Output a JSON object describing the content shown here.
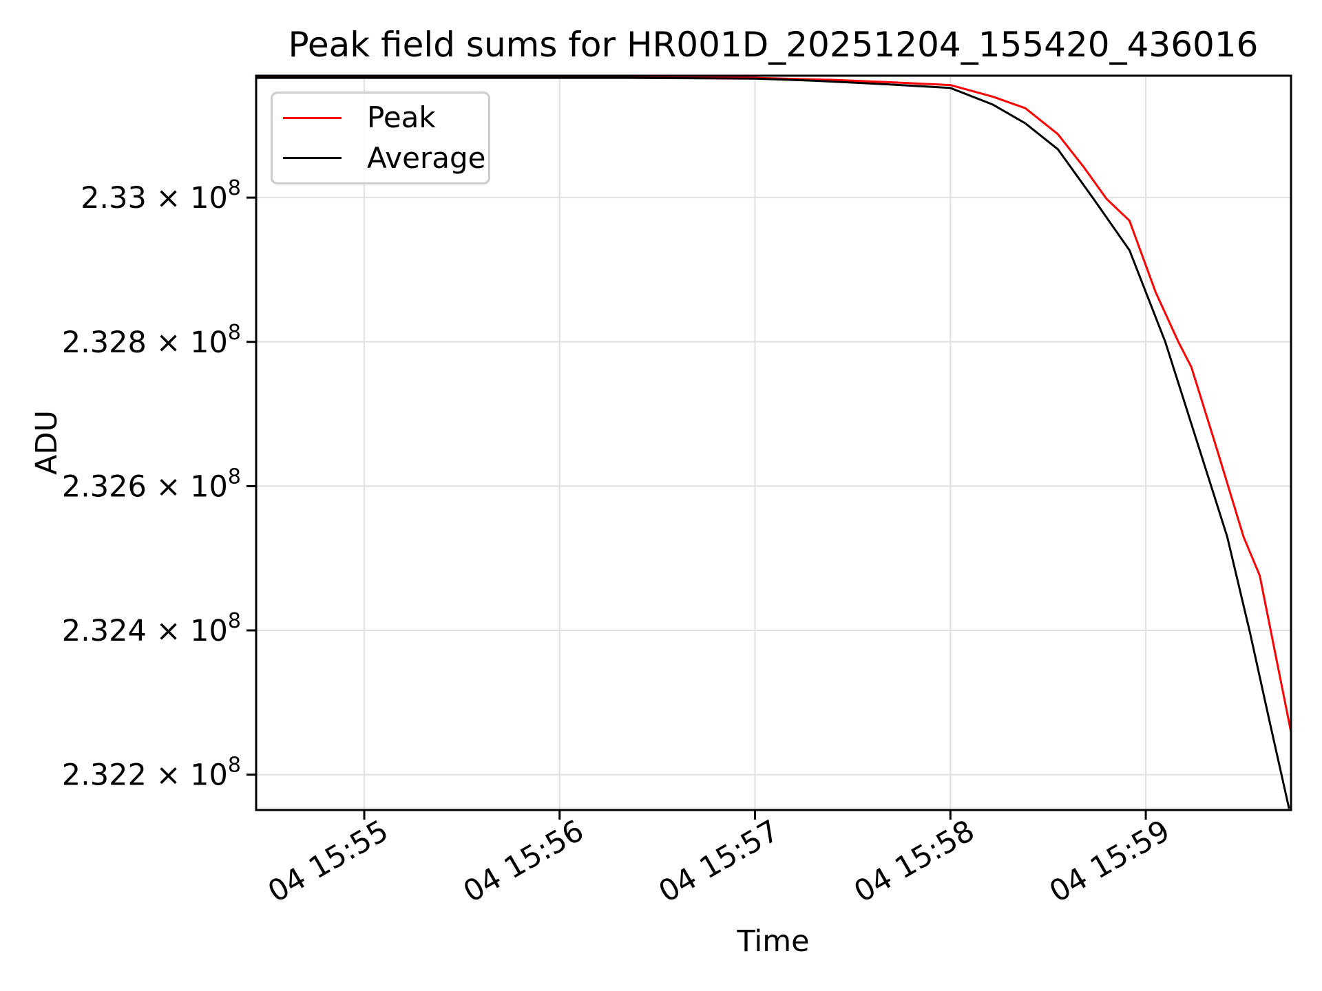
{
  "chart_data": {
    "type": "line",
    "title": "Peak field sums for HR001D_20251204_155420_436016",
    "xlabel": "Time",
    "ylabel": "ADU",
    "y_scale": "log",
    "grid": true,
    "x_axis": {
      "tick_labels": [
        "04 15:55",
        "04 15:56",
        "04 15:57",
        "04 15:58",
        "04 15:59"
      ],
      "tick_seconds_after_04_1554": [
        60,
        120,
        180,
        240,
        300
      ],
      "range_seconds_after_04_1554": [
        26.8,
        344.6
      ],
      "tick_label_rotation_deg": 30
    },
    "y_axis": {
      "ticks": [
        {
          "value": 233000000,
          "text": "2.33 × 10",
          "sup": "8"
        },
        {
          "value": 232800000,
          "text": "2.328 × 10",
          "sup": "8"
        },
        {
          "value": 232600000,
          "text": "2.326 × 10",
          "sup": "8"
        },
        {
          "value": 232400000,
          "text": "2.324 × 10",
          "sup": "8"
        },
        {
          "value": 232200000,
          "text": "2.322 × 10",
          "sup": "8"
        }
      ],
      "range": [
        232151000,
        233169000
      ]
    },
    "legend": {
      "position": "upper left",
      "entries": [
        {
          "label": "Peak",
          "color": "#ff0000"
        },
        {
          "label": "Average",
          "color": "#000000"
        }
      ]
    },
    "series": [
      {
        "name": "Peak",
        "color": "#ff0000",
        "points": [
          [
            27,
            233167000
          ],
          [
            80,
            233167000
          ],
          [
            140,
            233167000
          ],
          [
            180,
            233166000
          ],
          [
            205,
            233163000
          ],
          [
            221,
            233160000
          ],
          [
            240,
            233156000
          ],
          [
            253,
            233140000
          ],
          [
            263,
            233124000
          ],
          [
            273,
            233088000
          ],
          [
            281,
            233042000
          ],
          [
            288,
            232998000
          ],
          [
            295,
            232968000
          ],
          [
            303,
            232869000
          ],
          [
            310,
            232800000
          ],
          [
            314,
            232765000
          ],
          [
            322,
            232649000
          ],
          [
            330,
            232530000
          ],
          [
            335,
            232476000
          ],
          [
            340,
            232363000
          ],
          [
            345,
            232250000
          ]
        ]
      },
      {
        "name": "Average",
        "color": "#000000",
        "points": [
          [
            27,
            233166000
          ],
          [
            80,
            233166000
          ],
          [
            140,
            233166000
          ],
          [
            180,
            233165000
          ],
          [
            198,
            233162000
          ],
          [
            221,
            233157000
          ],
          [
            240,
            233152000
          ],
          [
            253,
            233129000
          ],
          [
            263,
            233103000
          ],
          [
            273,
            233067000
          ],
          [
            284,
            232998000
          ],
          [
            295,
            232927000
          ],
          [
            306,
            232800000
          ],
          [
            320,
            232601000
          ],
          [
            325,
            232530000
          ],
          [
            332,
            232397000
          ],
          [
            338,
            232274000
          ],
          [
            344,
            232153000
          ]
        ]
      }
    ],
    "colors": {
      "grid": "#e0e0e0",
      "spine": "#000000",
      "legend_edge": "#cccccc",
      "background": "#ffffff"
    }
  }
}
